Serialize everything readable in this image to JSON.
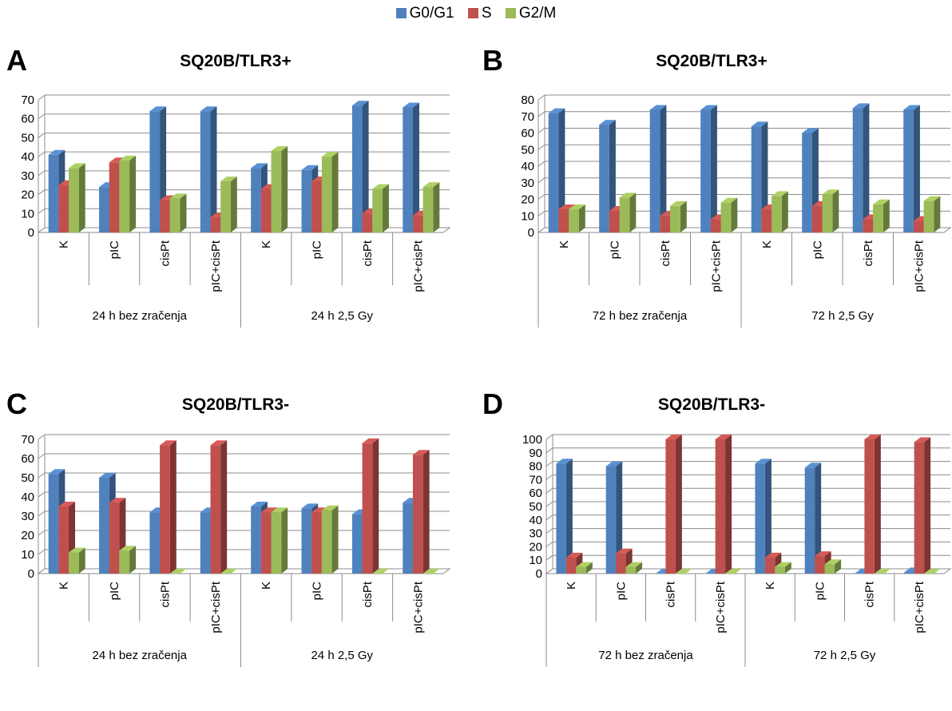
{
  "legend": [
    {
      "name": "G0/G1",
      "color": "#4f81bd"
    },
    {
      "name": "S",
      "color": "#c0504d"
    },
    {
      "name": "G2/M",
      "color": "#9bbb59"
    }
  ],
  "chart_data": [
    {
      "panel": "A",
      "type": "bar",
      "title": "SQ20B/TLR3+",
      "categories": [
        "K",
        "pIC",
        "cisPt",
        "pIC+cisPt",
        "K",
        "pIC",
        "cisPt",
        "pIC+cisPt"
      ],
      "groups": [
        {
          "label": "24 h bez zračenja",
          "count": 4
        },
        {
          "label": "24 h 2,5 Gy",
          "count": 4
        }
      ],
      "series": [
        {
          "name": "G0/G1",
          "values": [
            41,
            24,
            64,
            64,
            34,
            33,
            67,
            66
          ]
        },
        {
          "name": "S",
          "values": [
            25,
            37,
            17,
            8,
            23,
            27,
            10,
            9
          ]
        },
        {
          "name": "G2/M",
          "values": [
            34,
            38,
            18,
            27,
            43,
            40,
            23,
            24
          ]
        }
      ],
      "ylim": [
        0,
        70
      ],
      "yticks": [
        0,
        10,
        20,
        30,
        40,
        50,
        60,
        70
      ],
      "grid": true
    },
    {
      "panel": "B",
      "type": "bar",
      "title": "SQ20B/TLR3+",
      "categories": [
        "K",
        "pIC",
        "cisPt",
        "pIC+cisPt",
        "K",
        "pIC",
        "cisPt",
        "pIC+cisPt"
      ],
      "groups": [
        {
          "label": "72 h bez zračenja",
          "count": 4
        },
        {
          "label": "72 h 2,5 Gy",
          "count": 4
        }
      ],
      "series": [
        {
          "name": "G0/G1",
          "values": [
            72,
            65,
            74,
            74,
            64,
            60,
            75,
            74
          ]
        },
        {
          "name": "S",
          "values": [
            14,
            13,
            10,
            8,
            14,
            16,
            8,
            7
          ]
        },
        {
          "name": "G2/M",
          "values": [
            14,
            21,
            16,
            18,
            22,
            23,
            17,
            19
          ]
        }
      ],
      "ylim": [
        0,
        80
      ],
      "yticks": [
        0,
        10,
        20,
        30,
        40,
        50,
        60,
        70,
        80
      ],
      "grid": true
    },
    {
      "panel": "C",
      "type": "bar",
      "title": "SQ20B/TLR3-",
      "categories": [
        "K",
        "pIC",
        "cisPt",
        "pIC+cisPt",
        "K",
        "pIC",
        "cisPt",
        "pIC+cisPt"
      ],
      "groups": [
        {
          "label": "24 h bez zračenja",
          "count": 4
        },
        {
          "label": "24 h 2,5 Gy",
          "count": 4
        }
      ],
      "series": [
        {
          "name": "G0/G1",
          "values": [
            52,
            50,
            32,
            32,
            35,
            34,
            31,
            37
          ]
        },
        {
          "name": "S",
          "values": [
            35,
            37,
            67,
            67,
            32,
            32,
            68,
            62
          ]
        },
        {
          "name": "G2/M",
          "values": [
            11,
            12,
            0,
            0,
            32,
            33,
            0,
            0
          ]
        }
      ],
      "ylim": [
        0,
        70
      ],
      "yticks": [
        0,
        10,
        20,
        30,
        40,
        50,
        60,
        70
      ],
      "grid": true
    },
    {
      "panel": "D",
      "type": "bar",
      "title": "SQ20B/TLR3-",
      "categories": [
        "K",
        "pIC",
        "cisPt",
        "pIC+cisPt",
        "K",
        "pIC",
        "cisPt",
        "pIC+cisPt"
      ],
      "groups": [
        {
          "label": "72 h bez zračenja",
          "count": 4
        },
        {
          "label": "72 h 2,5 Gy",
          "count": 4
        }
      ],
      "series": [
        {
          "name": "G0/G1",
          "values": [
            82,
            80,
            0,
            0,
            82,
            79,
            0,
            1
          ]
        },
        {
          "name": "S",
          "values": [
            12,
            15,
            100,
            100,
            12,
            13,
            100,
            98
          ]
        },
        {
          "name": "G2/M",
          "values": [
            5,
            5,
            0,
            0,
            5,
            7,
            0,
            0
          ]
        }
      ],
      "ylim": [
        0,
        100
      ],
      "yticks": [
        0,
        10,
        20,
        30,
        40,
        50,
        60,
        70,
        80,
        90,
        100
      ],
      "grid": true
    }
  ]
}
